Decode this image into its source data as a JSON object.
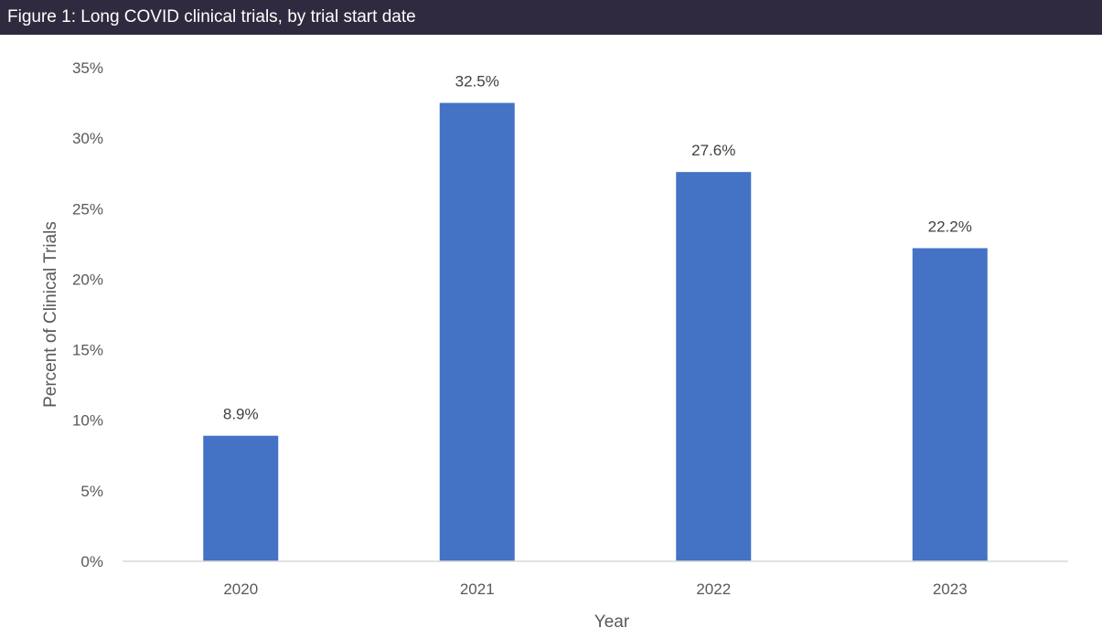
{
  "header": {
    "title": "Figure 1: Long COVID clinical trials, by trial start date",
    "background_color": "#2f2a3f"
  },
  "chart_data": {
    "type": "bar",
    "categories": [
      "2020",
      "2021",
      "2022",
      "2023"
    ],
    "values": [
      8.9,
      32.5,
      27.6,
      22.2
    ],
    "data_labels": [
      "8.9%",
      "32.5%",
      "27.6%",
      "22.2%"
    ],
    "title": "Figure 1: Long COVID clinical trials, by trial start date",
    "xlabel": "Year",
    "ylabel": "Percent of Clinical Trials",
    "ylim": [
      0,
      35
    ],
    "yticks": [
      0,
      5,
      10,
      15,
      20,
      25,
      30,
      35
    ],
    "ytick_labels": [
      "0%",
      "5%",
      "10%",
      "15%",
      "20%",
      "25%",
      "30%",
      "35%"
    ],
    "grid": false,
    "legend": "none",
    "bar_color": "#4472c4"
  }
}
